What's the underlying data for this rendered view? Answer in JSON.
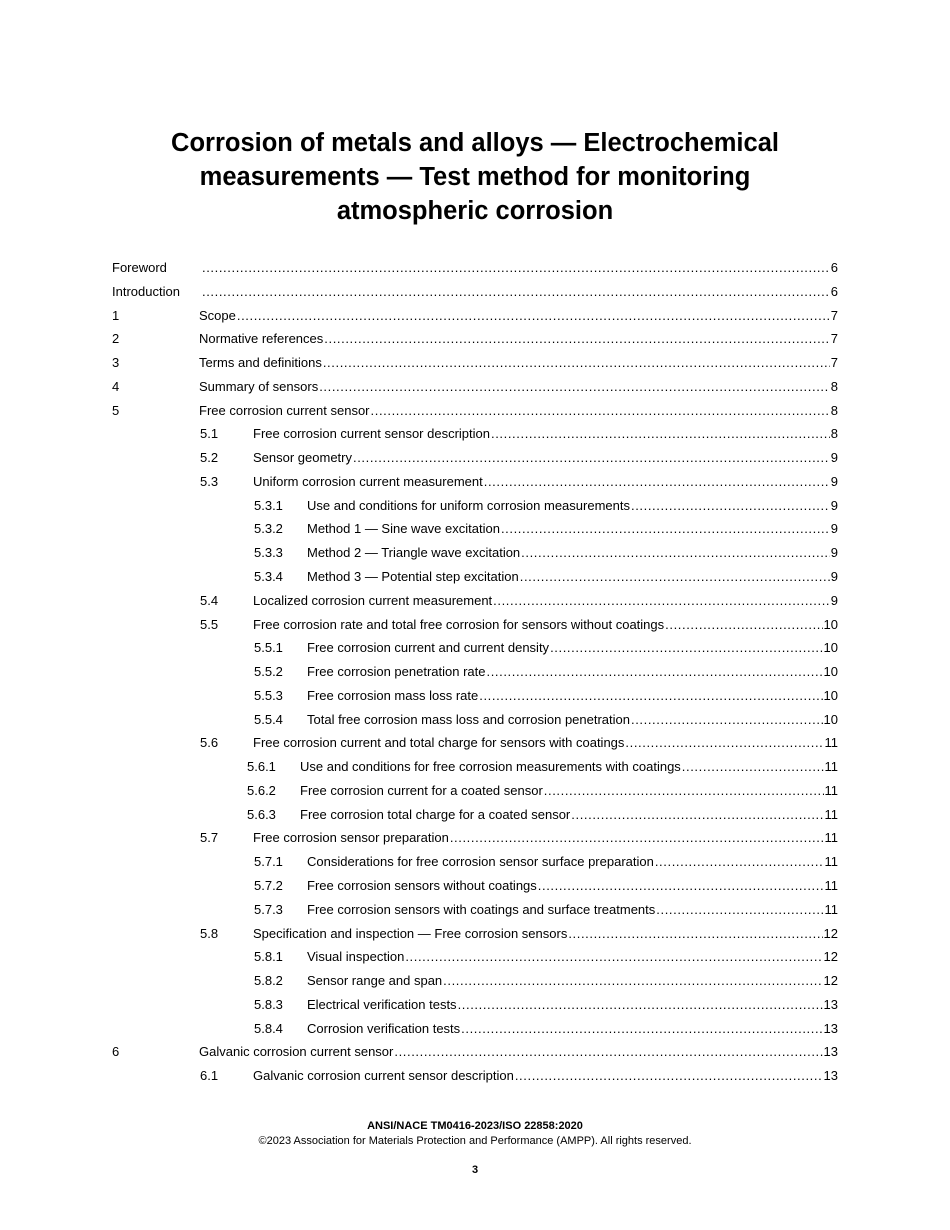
{
  "title": {
    "lines": [
      "Corrosion of metals and alloys — Electrochemical",
      "measurements — Test method for monitoring",
      "atmospheric corrosion"
    ]
  },
  "toc": [
    {
      "num": "Foreword",
      "title": "",
      "page": "6",
      "level": "front"
    },
    {
      "num": "Introduction",
      "title": "",
      "page": "6",
      "level": "front"
    },
    {
      "num": "1",
      "title": "Scope",
      "page": "7",
      "level": "0"
    },
    {
      "num": "2",
      "title": "Normative references",
      "page": "7",
      "level": "0"
    },
    {
      "num": "3",
      "title": "Terms and definitions",
      "page": "7",
      "level": "0"
    },
    {
      "num": "4",
      "title": "Summary of sensors",
      "page": "8",
      "level": "0"
    },
    {
      "num": "5",
      "title": "Free corrosion current sensor",
      "page": "8",
      "level": "0"
    },
    {
      "num": "5.1",
      "title": "Free corrosion current sensor description",
      "page": "8",
      "level": "1"
    },
    {
      "num": "5.2",
      "title": "Sensor geometry",
      "page": "9",
      "level": "1"
    },
    {
      "num": "5.3",
      "title": "Uniform corrosion current measurement",
      "page": "9",
      "level": "1"
    },
    {
      "num": "5.3.1",
      "title": "Use and conditions for uniform corrosion measurements",
      "page": "9",
      "level": "2"
    },
    {
      "num": "5.3.2",
      "title": "Method 1 — Sine wave excitation",
      "page": "9",
      "level": "2"
    },
    {
      "num": "5.3.3",
      "title": "Method 2 — Triangle wave excitation",
      "page": "9",
      "level": "2"
    },
    {
      "num": "5.3.4",
      "title": "Method 3 — Potential step excitation",
      "page": "9",
      "level": "2"
    },
    {
      "num": "5.4",
      "title": "Localized corrosion current measurement",
      "page": "9",
      "level": "1"
    },
    {
      "num": "5.5",
      "title": "Free corrosion rate and total free corrosion for sensors without coatings",
      "page": "10",
      "level": "1"
    },
    {
      "num": "5.5.1",
      "title": "Free corrosion current and current density",
      "page": "10",
      "level": "2"
    },
    {
      "num": "5.5.2",
      "title": "Free corrosion penetration rate",
      "page": "10",
      "level": "2"
    },
    {
      "num": "5.5.3",
      "title": "Free corrosion mass loss rate",
      "page": "10",
      "level": "2"
    },
    {
      "num": "5.5.4",
      "title": "Total free corrosion mass loss and corrosion penetration",
      "page": "10",
      "level": "2"
    },
    {
      "num": "5.6",
      "title": "Free corrosion current and total charge for sensors with coatings",
      "page": "11",
      "level": "1"
    },
    {
      "num": "5.6.1",
      "title": "Use and conditions for free corrosion measurements with coatings",
      "page": "11",
      "level": "2b"
    },
    {
      "num": "5.6.2",
      "title": "Free corrosion current for a coated sensor",
      "page": "11",
      "level": "2b"
    },
    {
      "num": "5.6.3",
      "title": "Free corrosion total charge for a coated sensor",
      "page": "11",
      "level": "2b"
    },
    {
      "num": "5.7",
      "title": "Free corrosion sensor preparation",
      "page": "11",
      "level": "1"
    },
    {
      "num": "5.7.1",
      "title": "Considerations for free corrosion sensor surface preparation",
      "page": "11",
      "level": "2"
    },
    {
      "num": "5.7.2",
      "title": "Free corrosion sensors without coatings",
      "page": "11",
      "level": "2"
    },
    {
      "num": "5.7.3",
      "title": "Free corrosion sensors with coatings and surface treatments",
      "page": "11",
      "level": "2"
    },
    {
      "num": "5.8",
      "title": "Specification and inspection — Free corrosion sensors",
      "page": "12",
      "level": "1"
    },
    {
      "num": "5.8.1",
      "title": "Visual inspection",
      "page": "12",
      "level": "2"
    },
    {
      "num": "5.8.2",
      "title": "Sensor range and span",
      "page": "12",
      "level": "2"
    },
    {
      "num": "5.8.3",
      "title": "Electrical verification tests",
      "page": "13",
      "level": "2"
    },
    {
      "num": "5.8.4",
      "title": "Corrosion verification tests",
      "page": "13",
      "level": "2"
    },
    {
      "num": "6",
      "title": "Galvanic corrosion current sensor",
      "page": "13",
      "level": "0"
    },
    {
      "num": "6.1",
      "title": "Galvanic corrosion current sensor description",
      "page": "13",
      "level": "1"
    }
  ],
  "footer": {
    "standard": "ANSI/NACE TM0416-2023/ISO 22858:2020",
    "copyright": "©2023 Association for Materials Protection and Performance (AMPP). All rights reserved.",
    "page_number": "3"
  }
}
